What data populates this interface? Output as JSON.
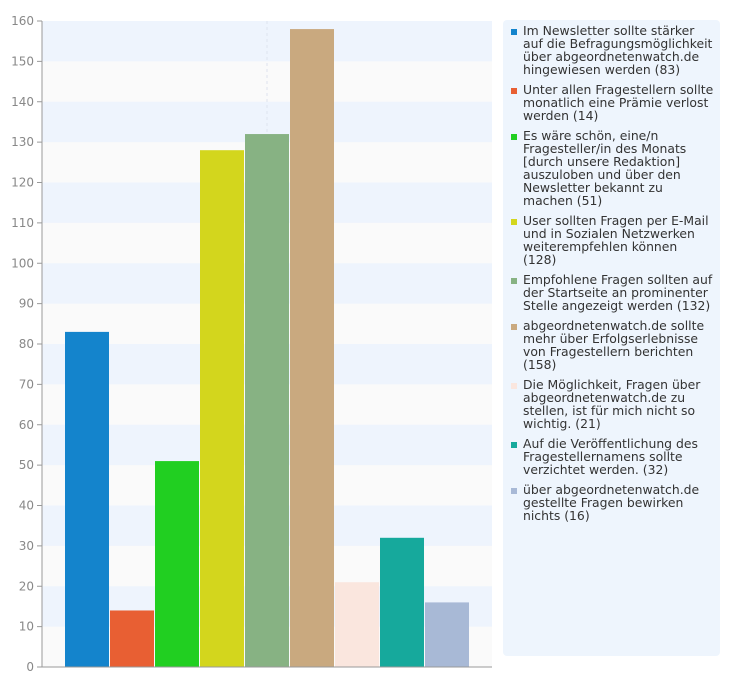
{
  "chart_data": {
    "type": "bar",
    "title": "",
    "xlabel": "",
    "ylabel": "",
    "ylim": [
      0,
      160
    ],
    "yticks": [
      0,
      10,
      20,
      30,
      40,
      50,
      60,
      70,
      80,
      90,
      100,
      110,
      120,
      130,
      140,
      150,
      160
    ],
    "grid": "alternating horizontal bands",
    "legend_position": "right",
    "series": [
      {
        "name": "Im Newsletter sollte stärker auf die Befragungsmöglichkeit über abgeordnetenwatch.de hingewiesen werden (83)",
        "value": 83,
        "color": "#1484cc"
      },
      {
        "name": "Unter allen Fragestellern sollte monatlich eine Prämie verlost werden (14)",
        "value": 14,
        "color": "#e85f33"
      },
      {
        "name": "Es wäre schön, eine/n Fragesteller/in des Monats [durch unsere Redaktion] auszuloben und über den Newsletter bekannt zu machen (51)",
        "value": 51,
        "color": "#21cf21"
      },
      {
        "name": "User sollten Fragen per E-Mail und in Sozialen Netzwerken weiterempfehlen können (128)",
        "value": 128,
        "color": "#d3d61d"
      },
      {
        "name": "Empfohlene Fragen sollten auf der Startseite an prominenter Stelle angezeigt werden (132)",
        "value": 132,
        "color": "#87b283"
      },
      {
        "name": "abgeordnetenwatch.de sollte mehr über Erfolgserlebnisse von Fragestellern berichten (158)",
        "value": 158,
        "color": "#c9a97f"
      },
      {
        "name": "Die Möglichkeit, Fragen über abgeordnetenwatch.de zu stellen, ist für mich nicht so wichtig. (21)",
        "value": 21,
        "color": "#fae6de"
      },
      {
        "name": "Auf die Veröffentlichung des Fragestellernamens sollte verzichtet werden. (32)",
        "value": 32,
        "color": "#16a99c"
      },
      {
        "name": "über abgeordnetenwatch.de gestellte Fragen bewirken nichts (16)",
        "value": 16,
        "color": "#a8b9d6"
      }
    ]
  }
}
